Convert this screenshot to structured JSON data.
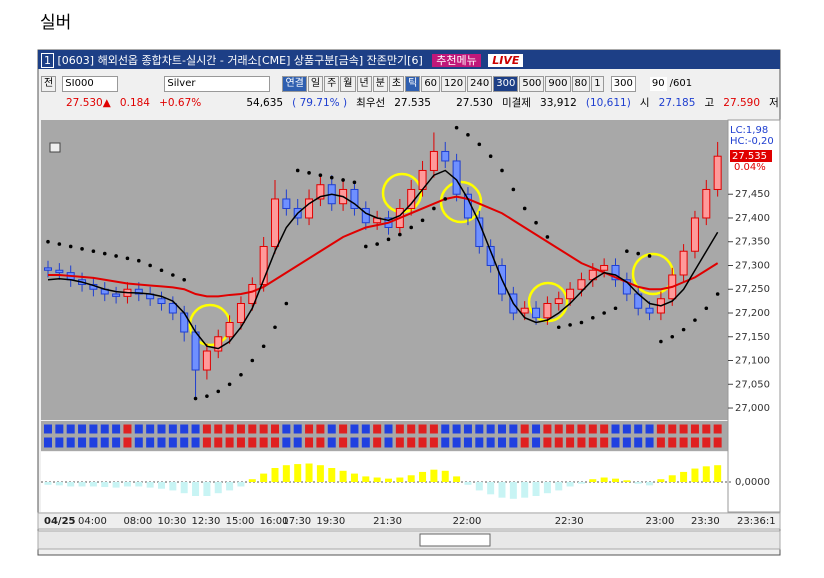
{
  "page_title": "실버",
  "window": {
    "number": "1",
    "title": "[0603] 해외선옵 종합차트-실시간 - 거래소[CME] 상품구분[금속] 잔존만기[6]",
    "recommend": "추천메뉴",
    "live": "LIVE"
  },
  "toolbar": {
    "mode": "전",
    "code": "SI000",
    "name": "Silver",
    "buttons": [
      "연결",
      "일",
      "주",
      "월",
      "년",
      "분",
      "초",
      "틱",
      "60",
      "120",
      "240",
      "300",
      "500",
      "900",
      "80",
      "1"
    ],
    "count": "300",
    "page": "90",
    "page_total": "/601"
  },
  "info": {
    "price": "27.530▲",
    "change": "0.184",
    "change_pct": "+0.67%",
    "volume": "54,635",
    "volume_pct": "( 79.71% )",
    "best_label": "최우선",
    "best_bid": "27.535",
    "best_ask": "27.530",
    "oi_label": "미결제",
    "oi": "33,912",
    "oi_change": "(10,611)",
    "open_label": "시",
    "open": "27.185",
    "high_label": "고",
    "high": "27.590",
    "low_label": "저"
  },
  "chart_data": {
    "type": "candlestick",
    "categories": [
      "04/25",
      null,
      null,
      "04:00",
      null,
      null,
      null,
      "08:00",
      null,
      null,
      "10:30",
      null,
      null,
      "12:30",
      null,
      null,
      "15:00",
      null,
      null,
      "16:00",
      null,
      "17:30",
      null,
      null,
      "19:30",
      null,
      null,
      null,
      null,
      "21:30",
      null,
      null,
      null,
      null,
      null,
      null,
      "22:00",
      null,
      null,
      null,
      null,
      null,
      null,
      null,
      null,
      "22:30",
      null,
      null,
      null,
      null,
      null,
      null,
      null,
      "23:00",
      null,
      null,
      null,
      "23:30",
      null,
      null
    ],
    "last_time": "23:36:1",
    "open": [
      27295,
      27290,
      27285,
      27270,
      27260,
      27250,
      27240,
      27235,
      27250,
      27240,
      27230,
      27220,
      27200,
      27160,
      27080,
      27120,
      27150,
      27180,
      27220,
      27260,
      27340,
      27440,
      27420,
      27400,
      27440,
      27470,
      27430,
      27460,
      27420,
      27390,
      27400,
      27380,
      27420,
      27460,
      27500,
      27540,
      27520,
      27450,
      27400,
      27340,
      27300,
      27240,
      27200,
      27210,
      27190,
      27220,
      27230,
      27250,
      27270,
      27290,
      27300,
      27270,
      27240,
      27210,
      27200,
      27230,
      27280,
      27330,
      27400,
      27460
    ],
    "high": [
      27310,
      27305,
      27300,
      27285,
      27275,
      27265,
      27255,
      27265,
      27265,
      27255,
      27245,
      27235,
      27215,
      27175,
      27135,
      27165,
      27195,
      27235,
      27275,
      27360,
      27480,
      27460,
      27440,
      27460,
      27490,
      27490,
      27480,
      27475,
      27435,
      27415,
      27415,
      27440,
      27480,
      27520,
      27580,
      27560,
      27535,
      27465,
      27415,
      27355,
      27315,
      27255,
      27225,
      27225,
      27235,
      27245,
      27265,
      27285,
      27305,
      27315,
      27315,
      27285,
      27255,
      27225,
      27245,
      27295,
      27345,
      27415,
      27480,
      27560
    ],
    "low": [
      27275,
      27270,
      27255,
      27245,
      27235,
      27225,
      27220,
      27220,
      27225,
      27215,
      27205,
      27185,
      27140,
      27020,
      27060,
      27105,
      27135,
      27165,
      27205,
      27245,
      27325,
      27405,
      27385,
      27385,
      27425,
      27415,
      27415,
      27405,
      27375,
      27375,
      27365,
      27365,
      27405,
      27445,
      27485,
      27505,
      27435,
      27385,
      27325,
      27285,
      27225,
      27185,
      27185,
      27175,
      27175,
      27205,
      27215,
      27235,
      27255,
      27275,
      27255,
      27225,
      27195,
      27185,
      27185,
      27215,
      27265,
      27315,
      27385,
      27445
    ],
    "close": [
      27290,
      27285,
      27270,
      27260,
      27250,
      27240,
      27235,
      27250,
      27240,
      27230,
      27220,
      27200,
      27160,
      27080,
      27120,
      27150,
      27180,
      27220,
      27260,
      27340,
      27440,
      27420,
      27400,
      27440,
      27470,
      27430,
      27460,
      27420,
      27390,
      27400,
      27380,
      27420,
      27460,
      27500,
      27540,
      27520,
      27450,
      27400,
      27340,
      27300,
      27240,
      27200,
      27210,
      27190,
      27220,
      27230,
      27250,
      27270,
      27290,
      27300,
      27270,
      27240,
      27210,
      27200,
      27230,
      27280,
      27330,
      27400,
      27460,
      27530
    ],
    "up_color": "#e00000",
    "down_color": "#1f3fd0",
    "ma_lines": [
      {
        "color": "#e00000",
        "values": [
          27280,
          27280,
          27278,
          27276,
          27274,
          27270,
          27266,
          27262,
          27260,
          27258,
          27256,
          27254,
          27250,
          27240,
          27235,
          27235,
          27238,
          27240,
          27245,
          27255,
          27270,
          27285,
          27300,
          27315,
          27330,
          27345,
          27360,
          27370,
          27380,
          27385,
          27390,
          27400,
          27410,
          27420,
          27430,
          27440,
          27445,
          27440,
          27430,
          27420,
          27410,
          27395,
          27380,
          27365,
          27350,
          27335,
          27320,
          27305,
          27295,
          27285,
          27275,
          27265,
          27255,
          27250,
          27250,
          27255,
          27265,
          27275,
          27290,
          27305
        ]
      },
      {
        "color": "#000000",
        "values": [
          27270,
          27272,
          27270,
          27265,
          27258,
          27250,
          27245,
          27243,
          27242,
          27240,
          27235,
          27225,
          27200,
          27160,
          27130,
          27125,
          27140,
          27170,
          27210,
          27270,
          27330,
          27380,
          27410,
          27430,
          27445,
          27450,
          27445,
          27430,
          27410,
          27400,
          27395,
          27405,
          27430,
          27460,
          27490,
          27500,
          27480,
          27440,
          27390,
          27330,
          27270,
          27220,
          27190,
          27180,
          27185,
          27200,
          27220,
          27245,
          27270,
          27285,
          27280,
          27265,
          27240,
          27220,
          27215,
          27225,
          27250,
          27290,
          27330,
          27370
        ]
      }
    ],
    "sar": {
      "color": "#000000",
      "values": [
        27350,
        27345,
        27340,
        27335,
        27330,
        27325,
        27320,
        27315,
        27310,
        27300,
        27290,
        27280,
        27270,
        27020,
        27025,
        27035,
        27050,
        27070,
        27100,
        27130,
        27170,
        27220,
        27500,
        27495,
        27490,
        27485,
        27480,
        27475,
        27340,
        27345,
        27355,
        27365,
        27380,
        27395,
        27420,
        27440,
        27590,
        27575,
        27555,
        27530,
        27500,
        27460,
        27420,
        27390,
        27360,
        27170,
        27175,
        27180,
        27190,
        27200,
        27210,
        27330,
        27325,
        27320,
        27140,
        27150,
        27165,
        27185,
        27210,
        27240
      ]
    },
    "ylim": [
      26979,
      27602
    ],
    "yticks": [
      {
        "value": 27000,
        "label": "27,000"
      },
      {
        "value": 27050,
        "label": "27,050"
      },
      {
        "value": 27100,
        "label": "27,100"
      },
      {
        "value": 27150,
        "label": "27,150"
      },
      {
        "value": 27200,
        "label": "27,200"
      },
      {
        "value": 27250,
        "label": "27,250"
      },
      {
        "value": 27300,
        "label": "27,300"
      },
      {
        "value": 27350,
        "label": "27,350"
      },
      {
        "value": 27400,
        "label": "27,400"
      },
      {
        "value": 27450,
        "label": "27,450"
      }
    ],
    "overlay_labels": [
      "LC:1,98",
      "HC:-0,20"
    ],
    "last_price_label": "27.535",
    "last_pct_label": "0.04%",
    "oscillator": {
      "ylim": [
        -0.05,
        0.05
      ],
      "yticks": [
        {
          "value": 0,
          "label": "0,0000"
        }
      ],
      "pos_color": "#ffff00",
      "neg_color": "#c8f4f4",
      "values": [
        -0.005,
        -0.006,
        -0.008,
        -0.008,
        -0.008,
        -0.009,
        -0.01,
        -0.008,
        -0.008,
        -0.01,
        -0.012,
        -0.015,
        -0.02,
        -0.025,
        -0.025,
        -0.02,
        -0.015,
        -0.008,
        0.005,
        0.015,
        0.025,
        0.03,
        0.032,
        0.033,
        0.03,
        0.025,
        0.02,
        0.015,
        0.01,
        0.008,
        0.006,
        0.008,
        0.012,
        0.018,
        0.022,
        0.02,
        0.01,
        -0.005,
        -0.015,
        -0.022,
        -0.028,
        -0.03,
        -0.028,
        -0.025,
        -0.02,
        -0.015,
        -0.008,
        -0.003,
        0.005,
        0.008,
        0.006,
        0.003,
        -0.003,
        -0.006,
        0.005,
        0.012,
        0.018,
        0.024,
        0.028,
        0.03
      ]
    }
  }
}
